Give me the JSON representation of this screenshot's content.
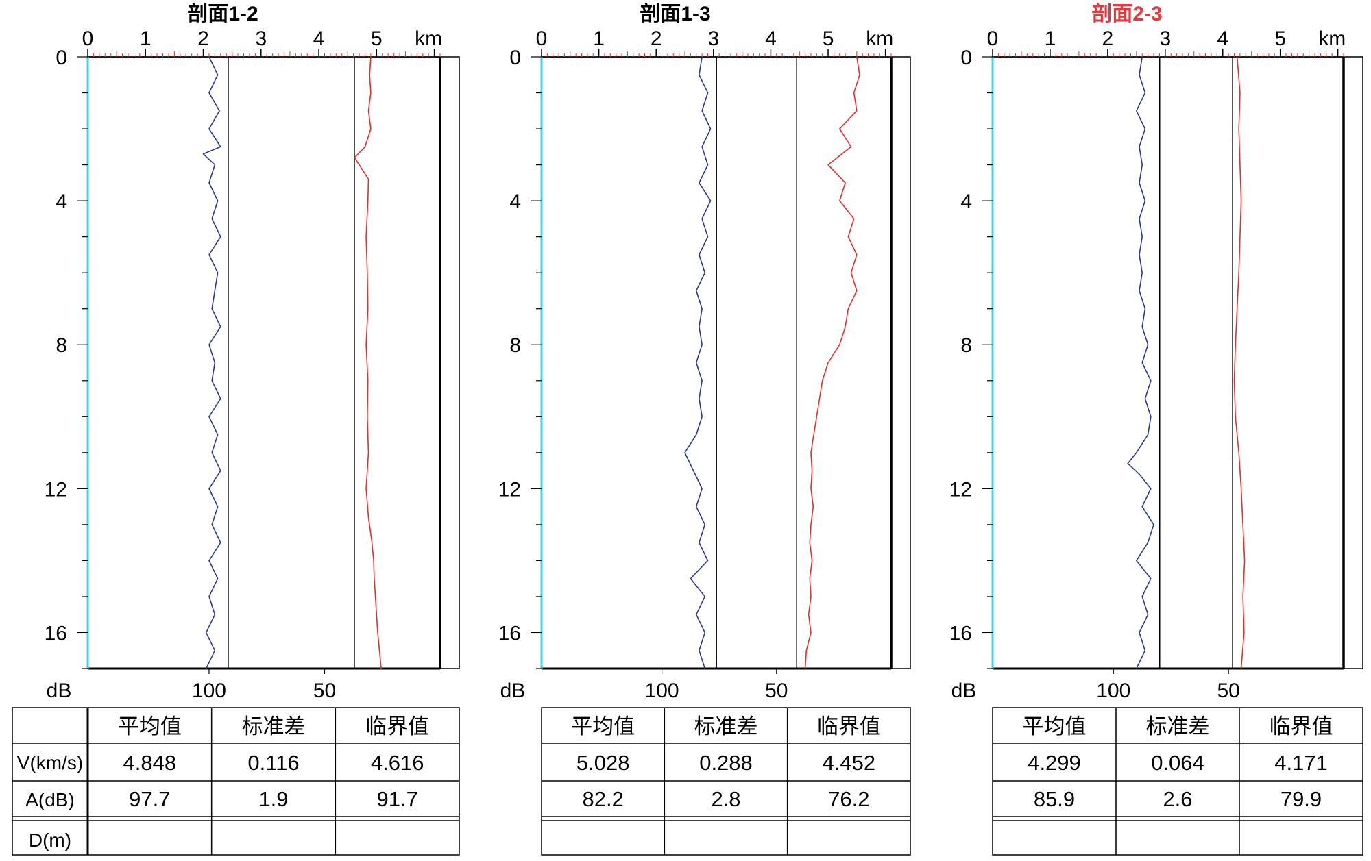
{
  "distance_unit": "km",
  "amp_unit": "dB",
  "table_header": [
    "平均值",
    "标准差",
    "临界值"
  ],
  "row_labels": [
    "V(km/s)",
    "A(dB)",
    "D(m)"
  ],
  "panels": [
    {
      "title_prefix": "剖面",
      "title_suffix": "1-2",
      "title_color": "#000000",
      "v_stats": [
        "4.848",
        "0.116",
        "4.616"
      ],
      "a_stats": [
        "97.7",
        "1.9",
        "91.7"
      ],
      "d_stats": [
        "",
        "",
        ""
      ]
    },
    {
      "title_prefix": "剖面",
      "title_suffix": "1-3",
      "title_color": "#000000",
      "v_stats": [
        "5.028",
        "0.288",
        "4.452"
      ],
      "a_stats": [
        "82.2",
        "2.8",
        "76.2"
      ],
      "d_stats": [
        "",
        "",
        ""
      ]
    },
    {
      "title_prefix": "剖面",
      "title_suffix": "2-3",
      "title_color": "#e8383d",
      "v_stats": [
        "4.299",
        "0.064",
        "4.171"
      ],
      "a_stats": [
        "85.9",
        "2.6",
        "79.9"
      ],
      "d_stats": [
        "",
        "",
        ""
      ]
    }
  ],
  "chart_data": [
    {
      "type": "line",
      "title": "剖面1-2",
      "x_top_ticks": [
        0,
        1,
        2,
        3,
        4,
        5
      ],
      "x_top_unit": "km",
      "xlim": [
        0,
        6.1
      ],
      "depth_ticks": [
        0,
        4,
        8,
        12,
        16
      ],
      "ylim": [
        0,
        17
      ],
      "y_reversed": true,
      "dB_ticks": [
        100,
        50
      ],
      "velocity_critical": 4.616,
      "amplitude_critical": 91.7,
      "series": [
        {
          "color": "#e03030",
          "x_axis": "km",
          "depth": [
            0,
            0.5,
            1,
            1.5,
            2,
            2.5,
            2.8,
            3,
            3.4,
            4,
            5,
            6,
            7,
            8,
            9,
            10,
            11,
            12,
            12.8,
            13.5,
            14,
            14.5,
            15,
            15.5,
            16,
            16.5,
            17
          ],
          "values": [
            4.9,
            4.88,
            4.9,
            4.86,
            4.9,
            4.8,
            4.62,
            4.7,
            4.86,
            4.85,
            4.82,
            4.84,
            4.85,
            4.82,
            4.85,
            4.84,
            4.86,
            4.82,
            4.86,
            4.92,
            4.95,
            4.96,
            4.98,
            5.0,
            5.02,
            5.05,
            5.08
          ]
        },
        {
          "color": "#2a3a8f",
          "x_axis": "km",
          "depth": [
            0,
            0.5,
            1,
            1.5,
            2,
            2.5,
            2.7,
            3,
            3.5,
            4,
            4.5,
            5,
            5.5,
            6,
            6.5,
            7,
            7.5,
            8,
            8.5,
            9,
            9.5,
            10,
            10.5,
            11,
            11.5,
            12,
            12.5,
            13,
            13.5,
            14,
            14.5,
            15,
            15.5,
            16,
            16.5,
            17
          ],
          "values": [
            2.1,
            2.25,
            2.1,
            2.28,
            2.1,
            2.3,
            2.0,
            2.2,
            2.1,
            2.25,
            2.15,
            2.3,
            2.1,
            2.25,
            2.2,
            2.15,
            2.3,
            2.1,
            2.2,
            2.15,
            2.3,
            2.1,
            2.25,
            2.15,
            2.3,
            2.1,
            2.25,
            2.15,
            2.3,
            2.1,
            2.25,
            2.1,
            2.2,
            2.05,
            2.2,
            2.05
          ]
        }
      ]
    },
    {
      "type": "line",
      "title": "剖面1-3",
      "x_top_ticks": [
        0,
        1,
        2,
        3,
        4,
        5
      ],
      "x_top_unit": "km",
      "xlim": [
        0,
        6.1
      ],
      "depth_ticks": [
        0,
        4,
        8,
        12,
        16
      ],
      "ylim": [
        0,
        17
      ],
      "y_reversed": true,
      "dB_ticks": [
        100,
        50
      ],
      "velocity_critical": 4.452,
      "amplitude_critical": 76.2,
      "series": [
        {
          "color": "#e03030",
          "x_axis": "km",
          "depth": [
            0,
            0.5,
            1,
            1.5,
            2,
            2.5,
            3,
            3.5,
            4,
            4.5,
            5,
            5.5,
            6,
            6.5,
            7,
            7.5,
            8,
            8.5,
            9,
            9.5,
            10,
            10.5,
            11,
            11.5,
            12,
            12.5,
            13,
            13.5,
            14,
            14.5,
            15,
            15.5,
            16,
            16.5,
            17
          ],
          "values": [
            5.5,
            5.55,
            5.45,
            5.5,
            5.2,
            5.4,
            5.0,
            5.3,
            5.2,
            5.45,
            5.35,
            5.5,
            5.4,
            5.5,
            5.35,
            5.3,
            5.2,
            5.0,
            4.9,
            4.85,
            4.8,
            4.75,
            4.7,
            4.72,
            4.7,
            4.74,
            4.7,
            4.68,
            4.72,
            4.68,
            4.7,
            4.66,
            4.7,
            4.62,
            4.6
          ]
        },
        {
          "color": "#2a3a8f",
          "x_axis": "km",
          "depth": [
            0,
            0.5,
            1,
            1.5,
            2,
            2.5,
            3,
            3.5,
            4,
            4.5,
            5,
            5.5,
            6,
            6.5,
            7,
            7.5,
            8,
            8.5,
            9,
            9.5,
            10,
            10.5,
            11,
            11.5,
            12,
            12.5,
            13,
            13.5,
            14,
            14.5,
            15,
            15.5,
            16,
            16.5,
            17
          ],
          "values": [
            2.8,
            2.75,
            2.9,
            2.8,
            2.95,
            2.8,
            2.9,
            2.75,
            2.95,
            2.8,
            2.9,
            2.75,
            2.85,
            2.7,
            2.8,
            2.75,
            2.8,
            2.7,
            2.8,
            2.75,
            2.8,
            2.7,
            2.5,
            2.65,
            2.8,
            2.7,
            2.85,
            2.75,
            2.9,
            2.6,
            2.85,
            2.7,
            2.85,
            2.75,
            2.85
          ]
        }
      ]
    },
    {
      "type": "line",
      "title": "剖面2-3",
      "x_top_ticks": [
        0,
        1,
        2,
        3,
        4,
        5
      ],
      "x_top_unit": "km",
      "xlim": [
        0,
        6.1
      ],
      "depth_ticks": [
        0,
        4,
        8,
        12,
        16
      ],
      "ylim": [
        0,
        17
      ],
      "y_reversed": true,
      "dB_ticks": [
        100,
        50
      ],
      "velocity_critical": 4.171,
      "amplitude_critical": 79.9,
      "series": [
        {
          "color": "#e03030",
          "x_axis": "km",
          "depth": [
            0,
            1,
            2,
            3,
            4,
            5,
            6,
            7,
            8,
            9,
            10,
            11,
            12,
            13,
            14,
            15,
            16,
            17
          ],
          "values": [
            4.25,
            4.3,
            4.28,
            4.3,
            4.32,
            4.3,
            4.28,
            4.25,
            4.22,
            4.2,
            4.22,
            4.28,
            4.32,
            4.35,
            4.38,
            4.35,
            4.37,
            4.32
          ]
        },
        {
          "color": "#2a3a8f",
          "x_axis": "km",
          "depth": [
            0,
            0.5,
            1,
            1.5,
            2,
            2.5,
            3,
            3.5,
            4,
            4.5,
            5,
            5.5,
            6,
            6.5,
            7,
            7.5,
            8,
            8.5,
            9,
            9.5,
            10,
            10.5,
            11,
            11.3,
            11.6,
            12,
            12.5,
            13,
            13.5,
            14,
            14.5,
            15,
            15.5,
            16,
            16.5,
            17
          ],
          "values": [
            2.6,
            2.55,
            2.65,
            2.5,
            2.65,
            2.55,
            2.6,
            2.55,
            2.65,
            2.55,
            2.6,
            2.55,
            2.6,
            2.55,
            2.65,
            2.6,
            2.7,
            2.6,
            2.75,
            2.65,
            2.75,
            2.7,
            2.5,
            2.35,
            2.55,
            2.75,
            2.6,
            2.8,
            2.7,
            2.5,
            2.75,
            2.6,
            2.7,
            2.55,
            2.65,
            2.5
          ]
        }
      ]
    }
  ]
}
